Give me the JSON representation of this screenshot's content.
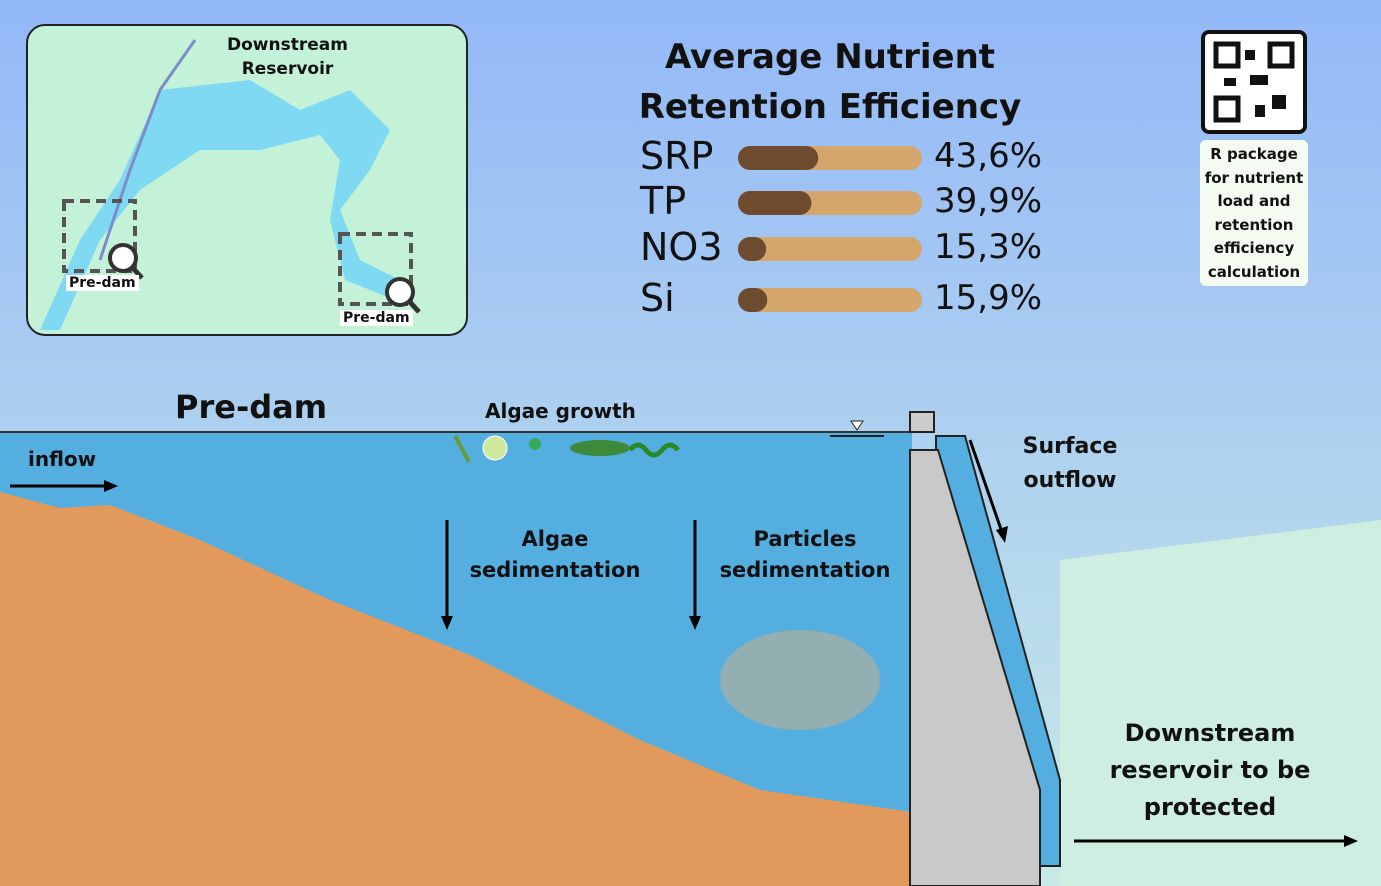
{
  "chart_data": {
    "type": "bar",
    "orientation": "horizontal",
    "title": "Average Nutrient Retention Efficiency",
    "categories": [
      "SRP",
      "TP",
      "NO3",
      "Si"
    ],
    "values": [
      43.6,
      39.9,
      15.3,
      15.9
    ],
    "value_labels": [
      "43,6%",
      "39,9%",
      "15,3%",
      "15,9%"
    ],
    "xlim": [
      0,
      100
    ],
    "color": "#6e4b2f",
    "track_color": "#d4a66c"
  },
  "map": {
    "reservoir_label": "Downstream Reservoir",
    "predam_labels": [
      "Pre-dam",
      "Pre-dam"
    ]
  },
  "qr": {
    "caption": "R package for nutrient load and retention efficiency calculation"
  },
  "diagram": {
    "predam_title": "Pre-dam",
    "algae_growth": "Algae growth",
    "inflow": "inflow",
    "algae_sedimentation": "Algae sedimentation",
    "particles_sedimentation": "Particles sedimentation",
    "surface_outflow": "Surface outflow",
    "downstream": "Downstream reservoir to be protected"
  }
}
